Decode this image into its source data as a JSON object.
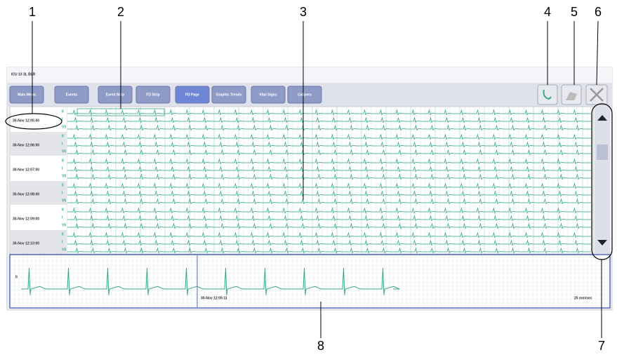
{
  "callouts": [
    "1",
    "2",
    "3",
    "4",
    "5",
    "6",
    "7",
    "8"
  ],
  "header": {
    "title": "ICU 13 3L BLR"
  },
  "tabs": [
    "Main Menu",
    "Events",
    "Event Strip",
    "FD Strip",
    "FD Page",
    "Graphic Trends",
    "Vital Signs",
    "Calipers"
  ],
  "rows": [
    {
      "time": "30-Nov 12:05:00",
      "leads": [
        "II",
        "I",
        "V5"
      ]
    },
    {
      "time": "30-Nov 12:06:00",
      "leads": [
        "II",
        "I",
        "V5"
      ]
    },
    {
      "time": "30-Nov 12:07:00",
      "leads": [
        "II",
        "I",
        "V5"
      ]
    },
    {
      "time": "30-Nov 12:08:00",
      "leads": [
        "II",
        "I",
        "V5"
      ]
    },
    {
      "time": "30-Nov 12:09:00",
      "leads": [
        "II",
        "I",
        "V5"
      ]
    },
    {
      "time": "30-Nov 12:10:00",
      "leads": [
        "II",
        "I",
        "V5"
      ]
    }
  ],
  "strip": {
    "lead": "II",
    "time": "30-Nov 12:05:11",
    "speed": "25 mm/sec"
  }
}
